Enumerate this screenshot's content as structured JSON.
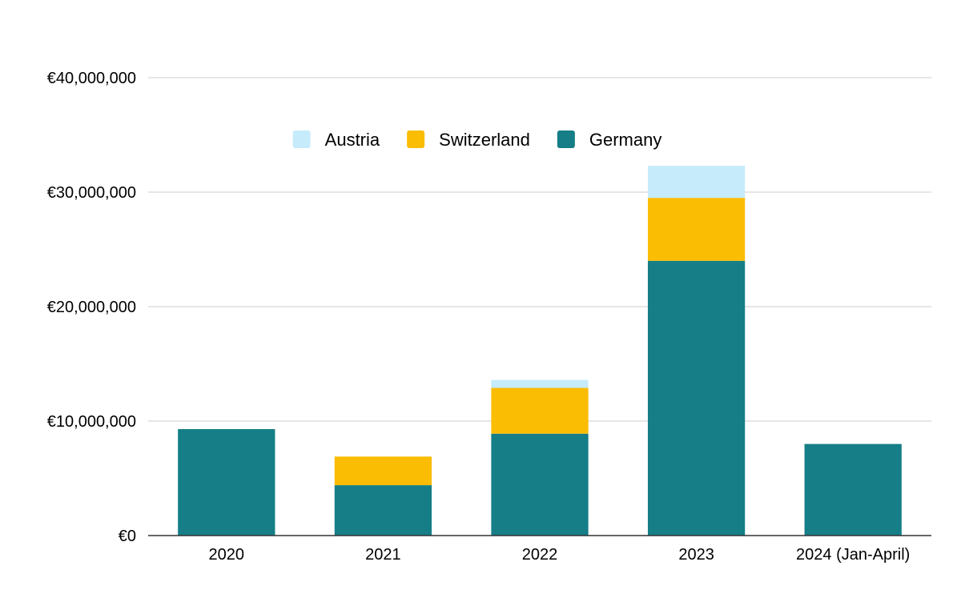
{
  "chart_data": {
    "type": "bar",
    "stacked": true,
    "categories": [
      "2020",
      "2021",
      "2022",
      "2023",
      "2024 (Jan-April)"
    ],
    "series": [
      {
        "name": "Germany",
        "color": "#157e87",
        "values": [
          9300000,
          4400000,
          8900000,
          24000000,
          8000000
        ]
      },
      {
        "name": "Switzerland",
        "color": "#fbbc04",
        "values": [
          0,
          2500000,
          4000000,
          5500000,
          0
        ]
      },
      {
        "name": "Austria",
        "color": "#c6ebfa",
        "values": [
          0,
          0,
          700000,
          2800000,
          0
        ]
      }
    ],
    "legend_order": [
      "Austria",
      "Switzerland",
      "Germany"
    ],
    "legend_position": "top-center",
    "ylim": [
      0,
      40000000
    ],
    "yticks": [
      0,
      10000000,
      20000000,
      30000000,
      40000000
    ],
    "ytick_labels": [
      "€0",
      "€10,000,000",
      "€20,000,000",
      "€30,000,000",
      "€40,000,000"
    ],
    "grid": true,
    "title": "",
    "xlabel": "",
    "ylabel": ""
  }
}
